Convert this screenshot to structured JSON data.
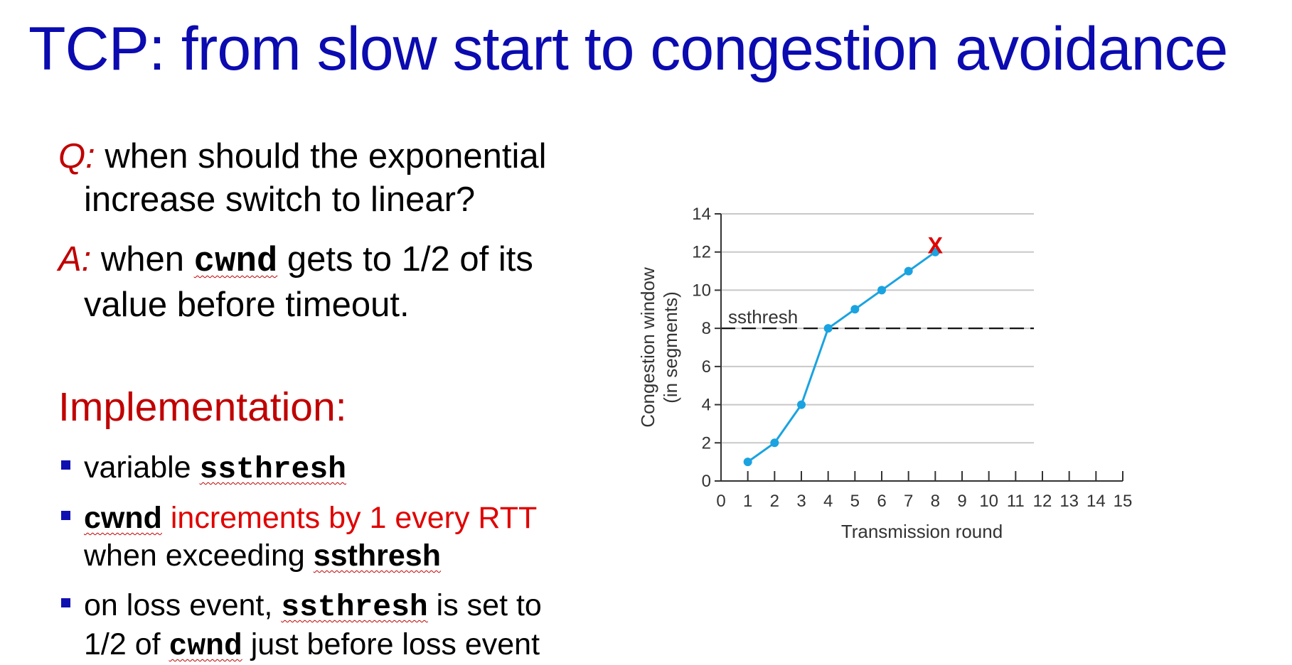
{
  "slide": {
    "title": "TCP: from slow start to congestion avoidance",
    "q_label": "Q:",
    "q_line1": " when should the exponential",
    "q_line2": "increase switch to linear?",
    "a_label": "A:",
    "a_pre": " when ",
    "a_code": "cwnd",
    "a_post": " gets to 1/2 of its",
    "a_line2": "value before timeout.",
    "impl_heading": "Implementation:",
    "b1_pre": "variable ",
    "b1_code": "ssthresh",
    "b2_code": "cwnd",
    "b2_red": " increments by 1 every RTT",
    "b2_line2_pre": "when exceeding ",
    "b2_line2_code": "ssthresh",
    "b3_pre": "on loss event, ",
    "b3_code": "ssthresh",
    "b3_post": " is set to",
    "b3_line2_pre": "1/2 of ",
    "b3_line2_code": "cwnd",
    "b3_line2_post": "  just before loss event"
  },
  "colors": {
    "title": "#0b0bb0",
    "accent_red": "#c00000",
    "bright_red": "#e00000",
    "bullet": "#1010b0",
    "series": "#1aa3e0",
    "grid": "#c8c8c8",
    "axis": "#333333",
    "loss_marker": "#e00000"
  },
  "chart_data": {
    "type": "line",
    "xlabel": "Transmission round",
    "ylabel_line1": "Congestion window",
    "ylabel_line2": "(in segments)",
    "xlim": [
      0,
      15
    ],
    "ylim": [
      0,
      14
    ],
    "xticks": [
      0,
      1,
      2,
      3,
      4,
      5,
      6,
      7,
      8,
      9,
      10,
      11,
      12,
      13,
      14,
      15
    ],
    "yticks": [
      0,
      2,
      4,
      6,
      8,
      10,
      12,
      14
    ],
    "grid": "horizontal",
    "series": [
      {
        "x": [
          1,
          2,
          3,
          4,
          5,
          6,
          7,
          8
        ],
        "y": [
          1,
          2,
          4,
          8,
          9,
          10,
          11,
          12
        ]
      }
    ],
    "threshold": {
      "label": "ssthresh",
      "y": 8
    },
    "loss_marker": {
      "label": "X",
      "x": 8,
      "y": 12
    }
  }
}
